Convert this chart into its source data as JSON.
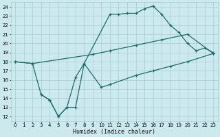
{
  "bg_color": "#cce9ee",
  "grid_color": "#aaccd4",
  "line_color": "#1a6b6b",
  "lw": 0.9,
  "ms": 3.5,
  "xlabel": "Humidex (Indice chaleur)",
  "xlim": [
    -0.5,
    23.5
  ],
  "ylim": [
    11.5,
    24.5
  ],
  "xticks": [
    0,
    1,
    2,
    3,
    4,
    5,
    6,
    7,
    8,
    9,
    10,
    11,
    12,
    13,
    14,
    15,
    16,
    17,
    18,
    19,
    20,
    21,
    22,
    23
  ],
  "yticks": [
    12,
    13,
    14,
    15,
    16,
    17,
    18,
    19,
    20,
    21,
    22,
    23,
    24
  ],
  "line1_x": [
    0,
    2,
    9,
    11,
    14,
    17,
    20,
    23
  ],
  "line1_y": [
    18.0,
    17.8,
    18.8,
    19.2,
    19.8,
    20.4,
    21.0,
    18.9
  ],
  "line2_x": [
    0,
    2,
    3,
    4,
    5,
    6,
    7,
    8,
    11,
    12,
    13,
    14,
    15,
    16,
    17,
    18,
    19,
    20,
    21,
    22,
    23
  ],
  "line2_y": [
    18.0,
    17.8,
    14.4,
    13.8,
    12.0,
    13.0,
    13.0,
    17.8,
    23.2,
    23.2,
    23.3,
    23.3,
    23.8,
    24.1,
    23.2,
    22.0,
    21.2,
    20.0,
    19.2,
    19.5,
    19.0
  ],
  "line3_x": [
    3,
    4,
    5,
    6,
    7,
    8,
    10,
    11,
    14,
    16,
    18,
    20,
    23
  ],
  "line3_y": [
    14.4,
    13.8,
    12.0,
    13.0,
    16.3,
    17.8,
    15.2,
    15.5,
    16.5,
    17.0,
    17.5,
    18.0,
    18.9
  ]
}
